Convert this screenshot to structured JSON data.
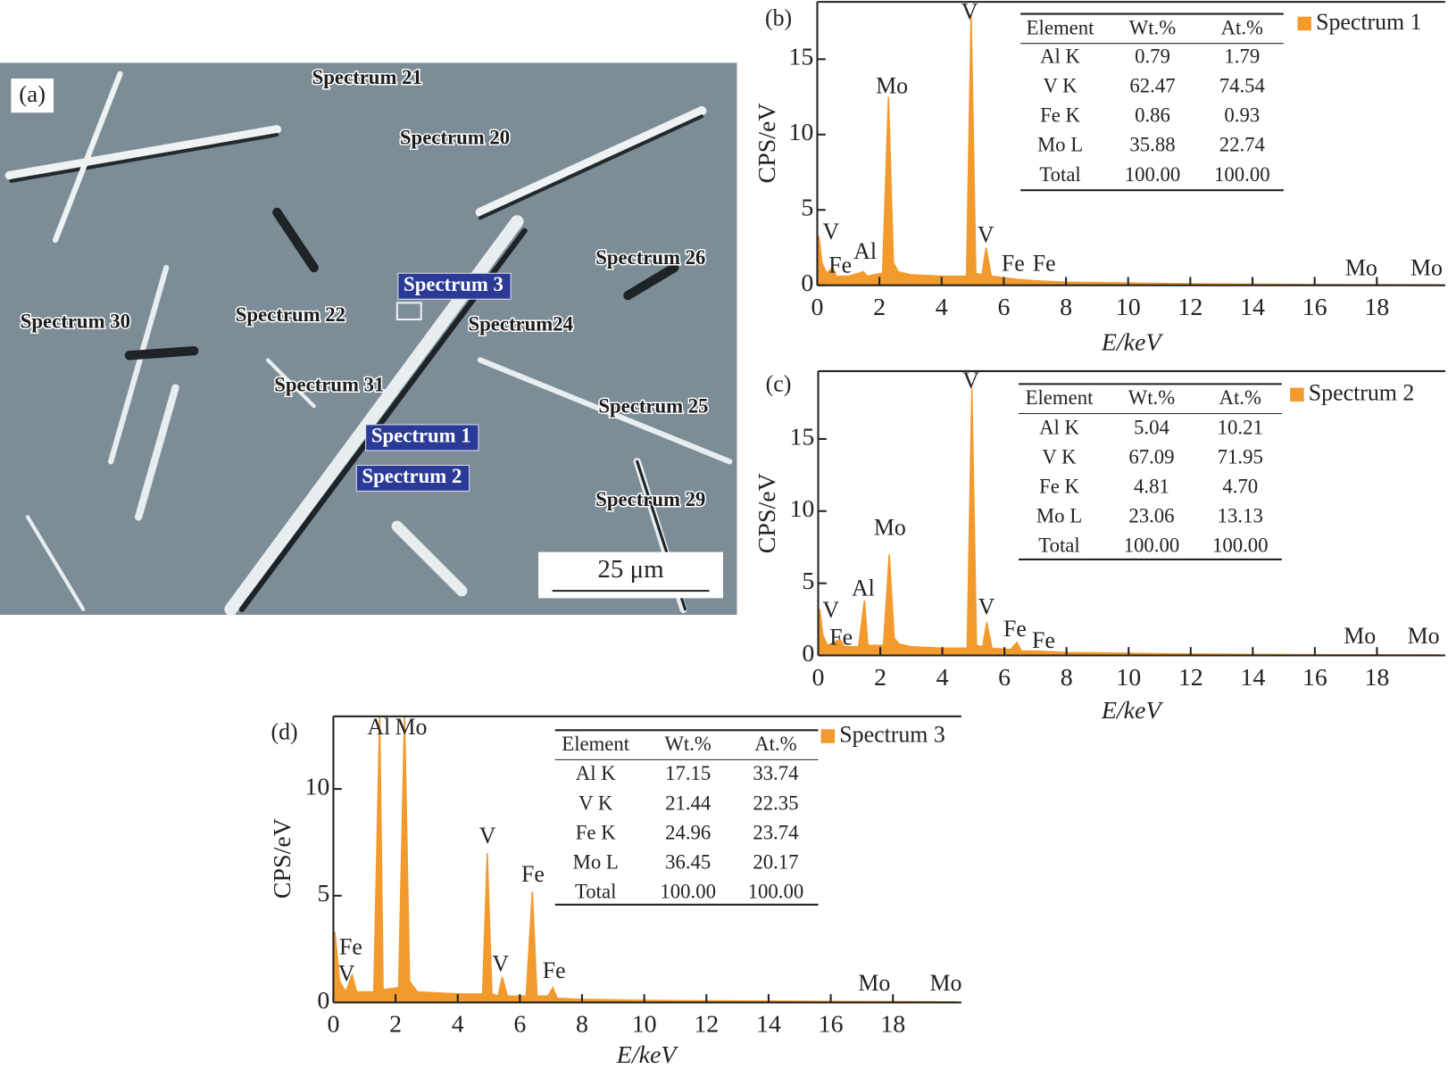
{
  "sem_image": {
    "panel_label": "(a)",
    "labels": [
      {
        "text": "Spectrum 21",
        "highlighted": false
      },
      {
        "text": "Spectrum 20",
        "highlighted": false
      },
      {
        "text": "Spectrum 26",
        "highlighted": false
      },
      {
        "text": "Spectrum 3",
        "highlighted": true
      },
      {
        "text": "Spectrum 22",
        "highlighted": false
      },
      {
        "text": "Spectrum 30",
        "highlighted": false
      },
      {
        "text": "Spectrum24",
        "highlighted": false
      },
      {
        "text": "Spectrum 31",
        "highlighted": false
      },
      {
        "text": "Spectrum 25",
        "highlighted": false
      },
      {
        "text": "Spectrum 1",
        "highlighted": true
      },
      {
        "text": "Spectrum 2",
        "highlighted": true
      },
      {
        "text": "Spectrum 29",
        "highlighted": false
      }
    ],
    "scale_bar": "25 μm"
  },
  "chart_data": [
    {
      "type": "area",
      "panel_label": "(b)",
      "x_label": "E/keV",
      "y_label": "CPS/eV",
      "x": [
        0,
        0.05,
        0.15,
        0.3,
        0.5,
        0.6,
        1,
        1.49,
        1.6,
        2.1,
        2.29,
        2.45,
        2.6,
        3,
        4,
        4.8,
        4.95,
        5.1,
        5.3,
        5.43,
        5.6,
        6.4,
        7,
        8,
        10,
        12,
        16,
        20
      ],
      "series": [
        {
          "name": "Spectrum 1",
          "color": "#f39a2e",
          "values": [
            0,
            3.3,
            1.5,
            0.8,
            1.2,
            0.6,
            0.6,
            0.9,
            0.6,
            0.8,
            12.5,
            1.5,
            0.9,
            0.7,
            0.6,
            0.6,
            18,
            0.8,
            0.7,
            2.5,
            0.6,
            0.4,
            0.3,
            0.2,
            0.15,
            0.1,
            0.05,
            0.03
          ]
        }
      ],
      "xlim": [
        0,
        20.2
      ],
      "ylim": [
        0,
        18.8
      ],
      "xticks": [
        0,
        2,
        4,
        6,
        8,
        10,
        12,
        14,
        16,
        18
      ],
      "yticks": [
        0,
        5,
        10,
        15
      ],
      "annotations": [
        {
          "text": "V",
          "x": 0.44,
          "y": 3.4
        },
        {
          "text": "Fe",
          "x": 0.74,
          "y": 1.2
        },
        {
          "text": "Al",
          "x": 1.54,
          "y": 2.1
        },
        {
          "text": "Mo",
          "x": 2.4,
          "y": 13.1
        },
        {
          "text": "V",
          "x": 4.9,
          "y": 18.0
        },
        {
          "text": "V",
          "x": 5.42,
          "y": 3.2
        },
        {
          "text": "Fe",
          "x": 6.3,
          "y": 1.3
        },
        {
          "text": "Fe",
          "x": 7.3,
          "y": 1.3
        },
        {
          "text": "Mo",
          "x": 17.5,
          "y": 1.0
        },
        {
          "text": "Mo",
          "x": 19.6,
          "y": 1.0
        }
      ],
      "table": {
        "header": [
          "Element",
          "Wt.%",
          "At.%"
        ],
        "rows": [
          [
            "Al K",
            "0.79",
            "1.79"
          ],
          [
            "V K",
            "62.47",
            "74.54"
          ],
          [
            "Fe K",
            "0.86",
            "0.93"
          ],
          [
            "Mo L",
            "35.88",
            "22.74"
          ],
          [
            "Total",
            "100.00",
            "100.00"
          ]
        ]
      }
    },
    {
      "type": "area",
      "panel_label": "(c)",
      "x_label": "E/keV",
      "y_label": "CPS/eV",
      "x": [
        0,
        0.05,
        0.15,
        0.3,
        0.5,
        0.7,
        0.85,
        1.3,
        1.49,
        1.6,
        2.1,
        2.29,
        2.45,
        2.6,
        3,
        4,
        4.8,
        4.95,
        5.1,
        5.3,
        5.43,
        5.6,
        6.2,
        6.4,
        6.55,
        7.06,
        8,
        10,
        12,
        16,
        20
      ],
      "series": [
        {
          "name": "Spectrum 2",
          "color": "#f39a2e",
          "values": [
            0,
            3.2,
            1.4,
            0.7,
            0.9,
            1.1,
            0.6,
            0.6,
            3.8,
            0.7,
            0.7,
            7.0,
            1.2,
            0.8,
            0.6,
            0.5,
            0.5,
            18.5,
            0.7,
            0.6,
            2.3,
            0.5,
            0.4,
            0.9,
            0.3,
            0.3,
            0.2,
            0.15,
            0.1,
            0.05,
            0.03
          ]
        }
      ],
      "xlim": [
        0,
        20.2
      ],
      "ylim": [
        0,
        19.7
      ],
      "xticks": [
        0,
        2,
        4,
        6,
        8,
        10,
        12,
        14,
        16,
        18
      ],
      "yticks": [
        0,
        5,
        10,
        15
      ],
      "annotations": [
        {
          "text": "V",
          "x": 0.41,
          "y": 3.0
        },
        {
          "text": "Fe",
          "x": 0.74,
          "y": 1.1
        },
        {
          "text": "Al",
          "x": 1.45,
          "y": 4.5
        },
        {
          "text": "Mo",
          "x": 2.31,
          "y": 8.7
        },
        {
          "text": "V",
          "x": 4.92,
          "y": 18.9
        },
        {
          "text": "V",
          "x": 5.42,
          "y": 3.2
        },
        {
          "text": "Fe",
          "x": 6.34,
          "y": 1.7
        },
        {
          "text": "Fe",
          "x": 7.26,
          "y": 0.9
        },
        {
          "text": "Mo",
          "x": 17.45,
          "y": 1.2
        },
        {
          "text": "Mo",
          "x": 19.5,
          "y": 1.2
        }
      ],
      "table": {
        "header": [
          "Element",
          "Wt.%",
          "At.%"
        ],
        "rows": [
          [
            "Al K",
            "5.04",
            "10.21"
          ],
          [
            "V K",
            "67.09",
            "71.95"
          ],
          [
            "Fe K",
            "4.81",
            "4.70"
          ],
          [
            "Mo L",
            "23.06",
            "13.13"
          ],
          [
            "Total",
            "100.00",
            "100.00"
          ]
        ]
      }
    },
    {
      "type": "area",
      "panel_label": "(d)",
      "x_label": "E/keV",
      "y_label": "CPS/eV",
      "x": [
        0,
        0.05,
        0.2,
        0.4,
        0.6,
        0.75,
        1.3,
        1.49,
        1.6,
        2.1,
        2.29,
        2.45,
        2.7,
        4,
        4.8,
        4.95,
        5.1,
        5.3,
        5.43,
        5.6,
        6.2,
        6.4,
        6.55,
        6.9,
        7.06,
        7.2,
        8,
        10,
        12,
        16,
        20
      ],
      "series": [
        {
          "name": "Spectrum 3",
          "color": "#f39a2e",
          "values": [
            0,
            3.3,
            1.0,
            0.5,
            1.3,
            0.5,
            0.5,
            13.4,
            0.6,
            0.7,
            13.4,
            1.0,
            0.5,
            0.4,
            0.4,
            7.0,
            0.4,
            0.3,
            1.2,
            0.3,
            0.3,
            5.2,
            0.3,
            0.3,
            0.7,
            0.2,
            0.15,
            0.1,
            0.08,
            0.05,
            0.03
          ]
        }
      ],
      "xlim": [
        0,
        20.2
      ],
      "ylim": [
        0,
        13.4
      ],
      "xticks": [
        0,
        2,
        4,
        6,
        8,
        10,
        12,
        14,
        16,
        18
      ],
      "yticks": [
        0,
        5,
        10
      ],
      "annotations": [
        {
          "text": "Fe",
          "x": 0.56,
          "y": 2.5
        },
        {
          "text": "V",
          "x": 0.42,
          "y": 1.25
        },
        {
          "text": "Al",
          "x": 1.46,
          "y": 12.8
        },
        {
          "text": "Mo",
          "x": 2.5,
          "y": 12.8
        },
        {
          "text": "V",
          "x": 4.96,
          "y": 7.7
        },
        {
          "text": "V",
          "x": 5.38,
          "y": 1.7
        },
        {
          "text": "Fe",
          "x": 6.42,
          "y": 5.9
        },
        {
          "text": "Fe",
          "x": 7.1,
          "y": 1.4
        },
        {
          "text": "Mo",
          "x": 17.4,
          "y": 0.8
        },
        {
          "text": "Mo",
          "x": 19.7,
          "y": 0.8
        }
      ],
      "table": {
        "header": [
          "Element",
          "Wt.%",
          "At.%"
        ],
        "rows": [
          [
            "Al K",
            "17.15",
            "33.74"
          ],
          [
            "V K",
            "21.44",
            "22.35"
          ],
          [
            "Fe K",
            "24.96",
            "23.74"
          ],
          [
            "Mo L",
            "36.45",
            "20.17"
          ],
          [
            "Total",
            "100.00",
            "100.00"
          ]
        ]
      }
    }
  ]
}
